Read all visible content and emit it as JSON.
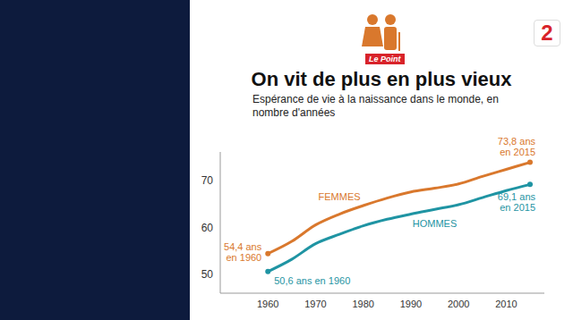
{
  "chart_data": {
    "type": "line",
    "title": "On vit de plus en plus vieux",
    "subtitle": "Espérance de vie à la naissance dans le monde, en nombre d'années",
    "source": "Le Point",
    "logo": "2",
    "x": [
      1960,
      1965,
      1970,
      1975,
      1980,
      1985,
      1990,
      1995,
      2000,
      2005,
      2010,
      2015
    ],
    "series": [
      {
        "name": "FEMMES",
        "color": "#d9782d",
        "values": [
          54.4,
          57.0,
          60.5,
          62.8,
          64.6,
          66.2,
          67.5,
          68.3,
          69.2,
          70.8,
          72.3,
          73.8
        ]
      },
      {
        "name": "HOMMES",
        "color": "#1f94a3",
        "values": [
          50.6,
          53.2,
          56.5,
          58.5,
          60.3,
          61.7,
          62.8,
          63.8,
          64.8,
          66.3,
          67.8,
          69.1
        ]
      }
    ],
    "annotations": [
      {
        "x": 1960,
        "y": 54.4,
        "text": "54,4 ans en 1960",
        "color": "#d9782d"
      },
      {
        "x": 1960,
        "y": 50.6,
        "text": "50,6 ans en 1960",
        "color": "#1f94a3"
      },
      {
        "x": 2015,
        "y": 73.8,
        "text": "73,8 ans en 2015",
        "color": "#d9782d"
      },
      {
        "x": 2015,
        "y": 69.1,
        "text": "69,1 ans en 2015",
        "color": "#1f94a3"
      }
    ],
    "xlim": [
      1950,
      2018
    ],
    "xticks": [
      1960,
      1970,
      1980,
      1990,
      2000,
      2010
    ],
    "ylim": [
      46,
      76
    ],
    "yticks": [
      50,
      60,
      70
    ],
    "grid": false,
    "marker": "none"
  }
}
